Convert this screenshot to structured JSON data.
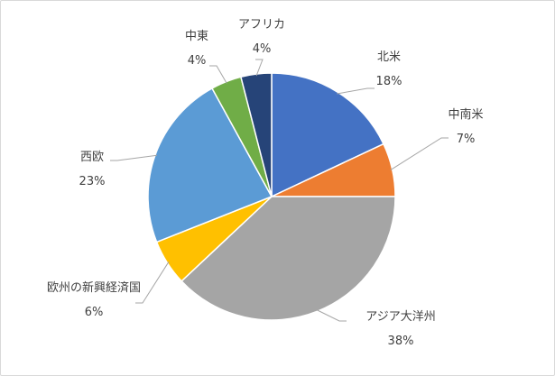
{
  "chart_data": {
    "type": "pie",
    "start_angle_deg": 0,
    "direction": "clockwise",
    "slices": [
      {
        "label": "北米",
        "value": 18,
        "value_label": "18%",
        "color": "#4472C4"
      },
      {
        "label": "中南米",
        "value": 7,
        "value_label": "7%",
        "color": "#ED7D31"
      },
      {
        "label": "アジア大洋州",
        "value": 38,
        "value_label": "38%",
        "color": "#A5A5A5"
      },
      {
        "label": "欧州の新興経済国",
        "value": 6,
        "value_label": "6%",
        "color": "#FFC000"
      },
      {
        "label": "西欧",
        "value": 23,
        "value_label": "23%",
        "color": "#5B9BD5"
      },
      {
        "label": "中東",
        "value": 4,
        "value_label": "4%",
        "color": "#70AD47"
      },
      {
        "label": "アフリカ",
        "value": 4,
        "value_label": "4%",
        "color": "#264478"
      }
    ],
    "slice_border_color": "#ffffff",
    "leader_line_color": "#a6a6a6"
  }
}
